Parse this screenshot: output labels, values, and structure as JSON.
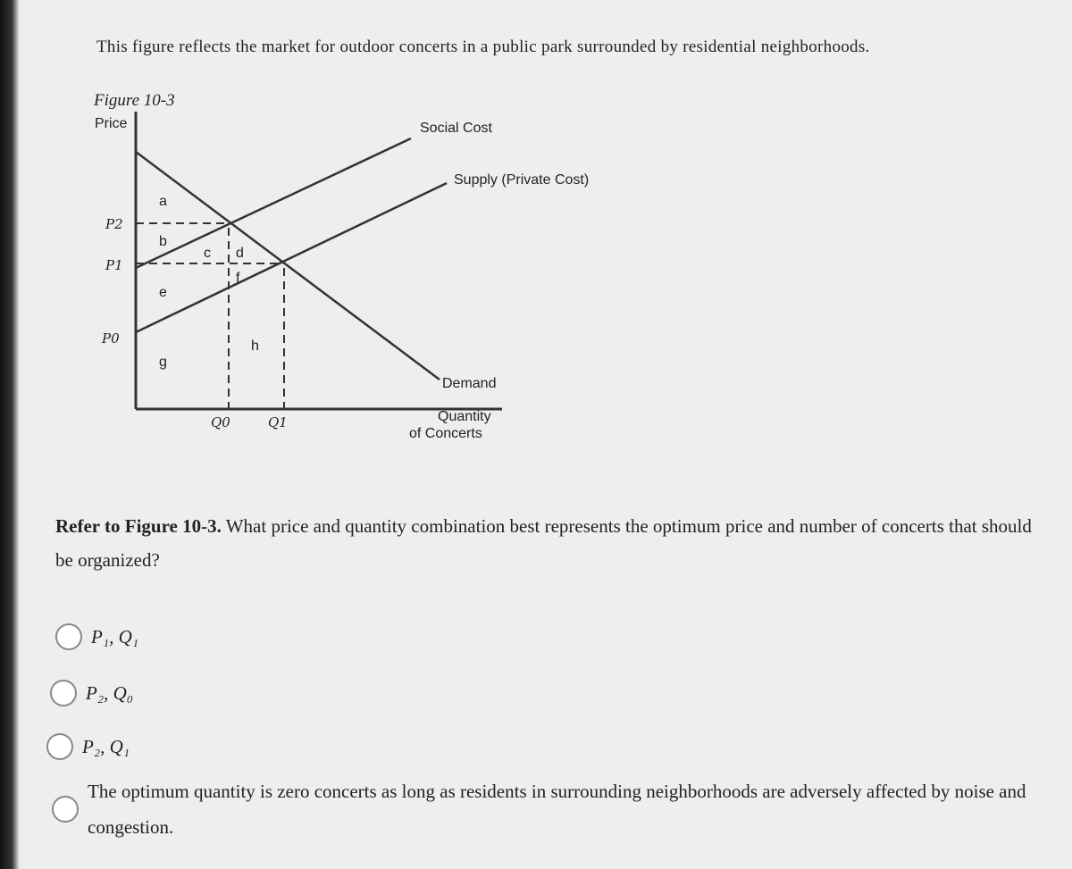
{
  "intro": "This figure reflects the market for outdoor concerts in a public park surrounded by residential neighborhoods.",
  "figure": {
    "label": "Figure 10-3",
    "y_axis_label": "Price",
    "x_axis_label": [
      "Quantity",
      "of Concerts"
    ],
    "curves": {
      "social_cost": "Social Cost",
      "supply": "Supply (Private Cost)",
      "demand": "Demand"
    },
    "price_labels": [
      "P2",
      "P1",
      "P0"
    ],
    "quantity_labels": [
      "Q0",
      "Q1"
    ],
    "regions": [
      "a",
      "b",
      "c",
      "d",
      "e",
      "f",
      "g",
      "h"
    ]
  },
  "question": {
    "reference": "Refer to Figure 10-3.",
    "text": "What price and quantity combination best represents the optimum price and number of concerts that should be organized?"
  },
  "options": [
    "P₁, Q₁",
    "P₂, Q₀",
    "P₂, Q₁",
    "The optimum quantity is zero concerts as long as residents in surrounding neighborhoods are adversely affected by noise and congestion."
  ]
}
